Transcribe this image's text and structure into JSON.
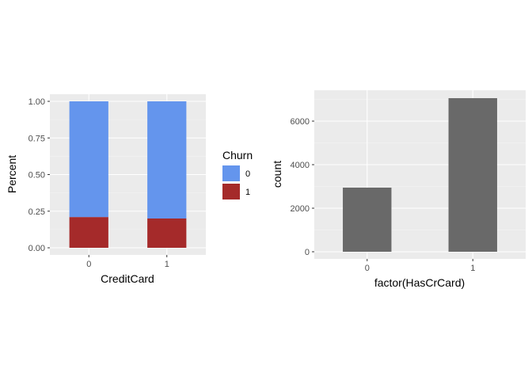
{
  "chart_data": [
    {
      "type": "bar",
      "stacked": true,
      "xlabel": "CreditCard",
      "ylabel": "Percent",
      "categories": [
        "0",
        "1"
      ],
      "ylim": [
        0,
        1.0
      ],
      "yticks": [
        "0.00",
        "0.25",
        "0.50",
        "0.75",
        "1.00"
      ],
      "grid": true,
      "series": [
        {
          "name": "1",
          "values": [
            0.21,
            0.2
          ],
          "color": "#A52A2A"
        },
        {
          "name": "0",
          "values": [
            0.79,
            0.8
          ],
          "color": "#6495ED"
        }
      ],
      "legend": {
        "title": "Churn",
        "position": "right",
        "entries": [
          "0",
          "1"
        ]
      }
    },
    {
      "type": "bar",
      "xlabel": "factor(HasCrCard)",
      "ylabel": "count",
      "categories": [
        "0",
        "1"
      ],
      "values": [
        2945,
        7055
      ],
      "ylim": [
        0,
        7000
      ],
      "yticks": [
        "0",
        "2000",
        "4000",
        "6000"
      ],
      "grid": true,
      "color": "#696969"
    }
  ]
}
